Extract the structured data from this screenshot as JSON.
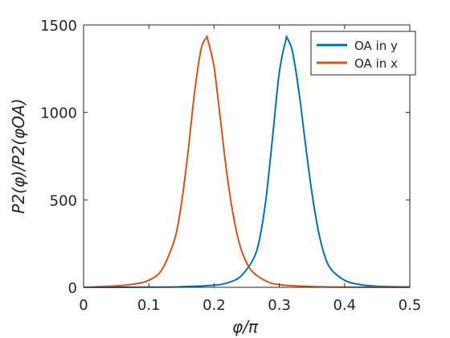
{
  "chart_data": {
    "type": "line",
    "title": "",
    "xlabel": "φ/π",
    "ylabel": "P2(φ)/P2(φOA)",
    "xlim": [
      0,
      0.5
    ],
    "ylim": [
      0,
      1500
    ],
    "xticks": [
      "0",
      "0.1",
      "0.2",
      "0.3",
      "0.4",
      "0.5"
    ],
    "yticks": [
      "0",
      "500",
      "1000",
      "1500"
    ],
    "grid": false,
    "legend_position": "top-right",
    "series": [
      {
        "name": "OA in y",
        "color": "#0072BD",
        "x": [
          0,
          0.05,
          0.1,
          0.15,
          0.2,
          0.22,
          0.24,
          0.26,
          0.27,
          0.28,
          0.29,
          0.3,
          0.31,
          0.312,
          0.32,
          0.33,
          0.34,
          0.35,
          0.36,
          0.37,
          0.38,
          0.4,
          0.42,
          0.45,
          0.5
        ],
        "values": [
          0,
          0,
          1,
          3,
          12,
          25,
          60,
          160,
          280,
          520,
          870,
          1230,
          1415,
          1425,
          1350,
          1120,
          820,
          540,
          320,
          175,
          100,
          40,
          18,
          6,
          2
        ]
      },
      {
        "name": "OA in x",
        "color": "#D95319",
        "x": [
          0,
          0.05,
          0.08,
          0.1,
          0.12,
          0.14,
          0.15,
          0.16,
          0.17,
          0.18,
          0.188,
          0.19,
          0.2,
          0.21,
          0.22,
          0.23,
          0.24,
          0.25,
          0.26,
          0.28,
          0.3,
          0.35,
          0.4,
          0.5
        ],
        "values": [
          0,
          8,
          20,
          40,
          100,
          280,
          480,
          770,
          1110,
          1360,
          1425,
          1420,
          1260,
          950,
          640,
          400,
          235,
          140,
          85,
          35,
          15,
          4,
          1,
          0
        ]
      }
    ]
  }
}
